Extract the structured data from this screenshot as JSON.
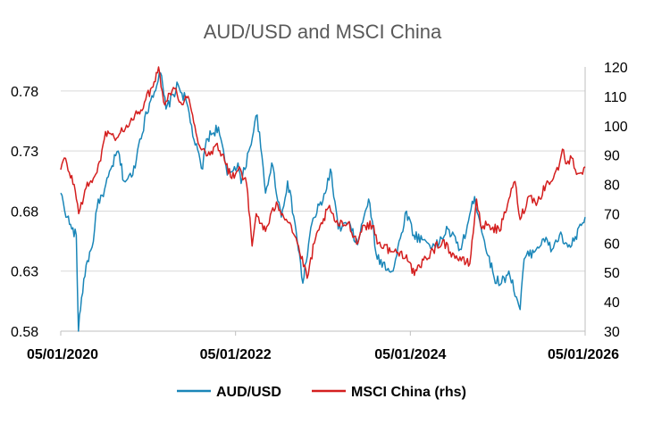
{
  "chart_data": {
    "type": "line",
    "title": "AUD/USD and MSCI China",
    "xlabel": "",
    "ylabel": "",
    "x_ticks": [
      "05/01/2020",
      "05/01/2022",
      "05/01/2024",
      "05/01/2026"
    ],
    "x_range": [
      "2020-01-05",
      "2026-01-05"
    ],
    "y_left": {
      "ticks": [
        "0.58",
        "0.63",
        "0.68",
        "0.73",
        "0.78"
      ],
      "range": [
        0.58,
        0.8
      ]
    },
    "y_right": {
      "ticks": [
        "30",
        "40",
        "50",
        "60",
        "70",
        "80",
        "90",
        "100",
        "110",
        "120"
      ],
      "range": [
        30,
        120
      ]
    },
    "grid": true,
    "legend": "bottom",
    "series": [
      {
        "name": "AUD/USD",
        "axis": "left",
        "color": "#1A86B8",
        "points": [
          [
            "2020-01-05",
            0.695
          ],
          [
            "2020-02-01",
            0.675
          ],
          [
            "2020-02-20",
            0.665
          ],
          [
            "2020-03-10",
            0.66
          ],
          [
            "2020-03-19",
            0.58
          ],
          [
            "2020-04-01",
            0.608
          ],
          [
            "2020-04-20",
            0.635
          ],
          [
            "2020-05-15",
            0.65
          ],
          [
            "2020-06-10",
            0.69
          ],
          [
            "2020-07-01",
            0.692
          ],
          [
            "2020-08-01",
            0.715
          ],
          [
            "2020-09-01",
            0.73
          ],
          [
            "2020-09-25",
            0.705
          ],
          [
            "2020-11-01",
            0.71
          ],
          [
            "2020-12-01",
            0.74
          ],
          [
            "2021-01-10",
            0.77
          ],
          [
            "2021-02-25",
            0.795
          ],
          [
            "2021-03-20",
            0.765
          ],
          [
            "2021-05-10",
            0.785
          ],
          [
            "2021-06-15",
            0.77
          ],
          [
            "2021-07-20",
            0.735
          ],
          [
            "2021-08-20",
            0.715
          ],
          [
            "2021-09-05",
            0.74
          ],
          [
            "2021-10-25",
            0.75
          ],
          [
            "2021-12-01",
            0.71
          ],
          [
            "2022-01-15",
            0.72
          ],
          [
            "2022-01-28",
            0.703
          ],
          [
            "2022-03-01",
            0.73
          ],
          [
            "2022-04-05",
            0.76
          ],
          [
            "2022-05-10",
            0.695
          ],
          [
            "2022-06-05",
            0.72
          ],
          [
            "2022-07-15",
            0.675
          ],
          [
            "2022-08-10",
            0.705
          ],
          [
            "2022-09-10",
            0.67
          ],
          [
            "2022-10-13",
            0.62
          ],
          [
            "2022-11-20",
            0.67
          ],
          [
            "2023-01-15",
            0.695
          ],
          [
            "2023-02-05",
            0.715
          ],
          [
            "2023-03-10",
            0.665
          ],
          [
            "2023-04-20",
            0.67
          ],
          [
            "2023-05-30",
            0.652
          ],
          [
            "2023-07-01",
            0.68
          ],
          [
            "2023-07-15",
            0.69
          ],
          [
            "2023-08-20",
            0.64
          ],
          [
            "2023-10-25",
            0.63
          ],
          [
            "2023-12-20",
            0.68
          ],
          [
            "2024-01-20",
            0.66
          ],
          [
            "2024-03-10",
            0.655
          ],
          [
            "2024-04-20",
            0.65
          ],
          [
            "2024-06-10",
            0.665
          ],
          [
            "2024-08-05",
            0.648
          ],
          [
            "2024-09-30",
            0.692
          ],
          [
            "2024-11-10",
            0.655
          ],
          [
            "2024-12-20",
            0.625
          ],
          [
            "2025-01-20",
            0.62
          ],
          [
            "2025-02-20",
            0.63
          ],
          [
            "2025-04-08",
            0.598
          ],
          [
            "2025-04-25",
            0.64
          ],
          [
            "2025-06-20",
            0.65
          ],
          [
            "2025-07-15",
            0.657
          ],
          [
            "2025-08-20",
            0.648
          ],
          [
            "2025-09-20",
            0.66
          ],
          [
            "2025-10-25",
            0.65
          ],
          [
            "2025-11-20",
            0.655
          ],
          [
            "2025-12-20",
            0.668
          ],
          [
            "2026-01-05",
            0.675
          ]
        ]
      },
      {
        "name": "MSCI China (rhs)",
        "axis": "right",
        "color": "#D41F1F",
        "points": [
          [
            "2020-01-05",
            85
          ],
          [
            "2020-01-20",
            89
          ],
          [
            "2020-02-10",
            84
          ],
          [
            "2020-03-01",
            80
          ],
          [
            "2020-03-20",
            70
          ],
          [
            "2020-04-15",
            78
          ],
          [
            "2020-05-20",
            82
          ],
          [
            "2020-06-20",
            88
          ],
          [
            "2020-07-10",
            98
          ],
          [
            "2020-08-15",
            96
          ],
          [
            "2020-10-01",
            99
          ],
          [
            "2020-11-20",
            104
          ],
          [
            "2020-12-20",
            108
          ],
          [
            "2021-01-20",
            113
          ],
          [
            "2021-02-17",
            120
          ],
          [
            "2021-03-10",
            108
          ],
          [
            "2021-04-20",
            113
          ],
          [
            "2021-05-20",
            108
          ],
          [
            "2021-06-20",
            110
          ],
          [
            "2021-07-28",
            96
          ],
          [
            "2021-08-20",
            92
          ],
          [
            "2021-09-20",
            90
          ],
          [
            "2021-10-20",
            94
          ],
          [
            "2021-11-20",
            88
          ],
          [
            "2021-12-20",
            82
          ],
          [
            "2022-01-20",
            86
          ],
          [
            "2022-02-20",
            80
          ],
          [
            "2022-03-15",
            59
          ],
          [
            "2022-04-01",
            70
          ],
          [
            "2022-05-10",
            64
          ],
          [
            "2022-06-25",
            74
          ],
          [
            "2022-07-20",
            70
          ],
          [
            "2022-08-20",
            67
          ],
          [
            "2022-09-20",
            60
          ],
          [
            "2022-10-31",
            48
          ],
          [
            "2022-11-30",
            60
          ],
          [
            "2023-01-27",
            72
          ],
          [
            "2023-03-10",
            66
          ],
          [
            "2023-04-20",
            67
          ],
          [
            "2023-05-31",
            60
          ],
          [
            "2023-06-20",
            66
          ],
          [
            "2023-07-31",
            66
          ],
          [
            "2023-08-25",
            60
          ],
          [
            "2023-10-25",
            57
          ],
          [
            "2023-12-20",
            56
          ],
          [
            "2024-01-22",
            49
          ],
          [
            "2024-03-10",
            55
          ],
          [
            "2024-05-20",
            61
          ],
          [
            "2024-06-20",
            57
          ],
          [
            "2024-08-05",
            54
          ],
          [
            "2024-09-10",
            53
          ],
          [
            "2024-10-08",
            75
          ],
          [
            "2024-10-25",
            66
          ],
          [
            "2024-12-01",
            66
          ],
          [
            "2025-01-13",
            64
          ],
          [
            "2025-02-20",
            75
          ],
          [
            "2025-03-18",
            81
          ],
          [
            "2025-04-08",
            68
          ],
          [
            "2025-05-15",
            76
          ],
          [
            "2025-06-20",
            74
          ],
          [
            "2025-07-25",
            80
          ],
          [
            "2025-08-25",
            82
          ],
          [
            "2025-09-20",
            87
          ],
          [
            "2025-10-02",
            92
          ],
          [
            "2025-10-20",
            87
          ],
          [
            "2025-11-10",
            89
          ],
          [
            "2025-11-25",
            85
          ],
          [
            "2025-12-20",
            84
          ],
          [
            "2026-01-05",
            86
          ]
        ]
      }
    ]
  }
}
